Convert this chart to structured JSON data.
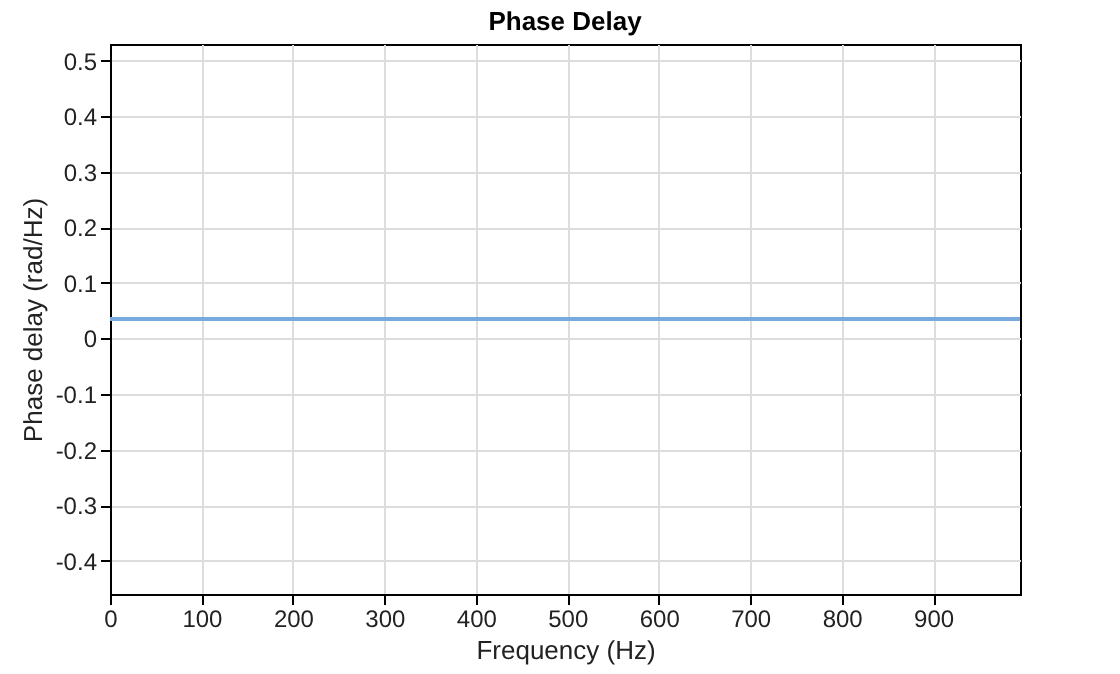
{
  "chart_data": {
    "type": "line",
    "title": "Phase Delay",
    "xlabel": "Frequency (Hz)",
    "ylabel": "Phase delay (rad/Hz)",
    "x": [
      0,
      995
    ],
    "series": [
      {
        "color": "#77aadd",
        "values": [
          0.035,
          0.035
        ]
      }
    ],
    "xlim": [
      0,
      995
    ],
    "xticks": [
      0,
      100,
      200,
      300,
      400,
      500,
      600,
      700,
      800,
      900
    ],
    "ylim": [
      -0.46,
      0.53
    ],
    "yticks": [
      -0.4,
      -0.3,
      -0.2,
      -0.1,
      0,
      0.1,
      0.2,
      0.3,
      0.4,
      0.5
    ],
    "grid": true,
    "marker": "none",
    "line_style": "solid"
  }
}
